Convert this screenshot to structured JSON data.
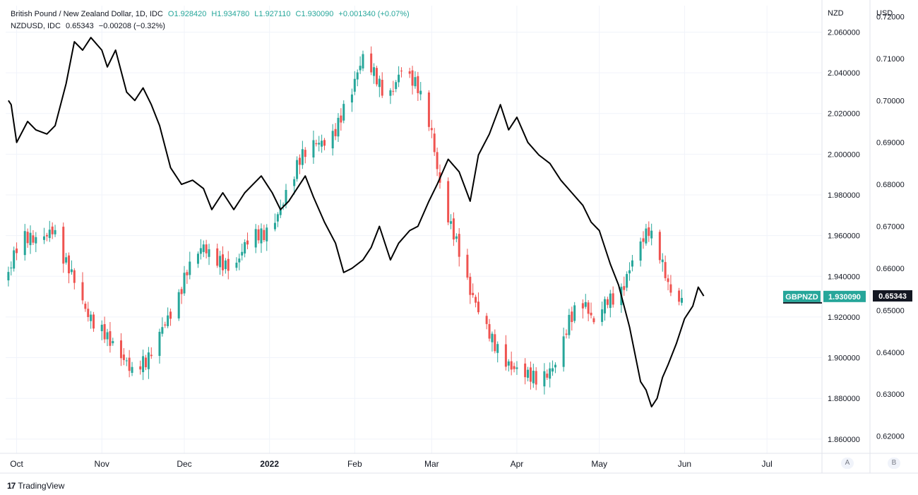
{
  "legend": {
    "series1_name": "British Pound / New Zealand Dollar, 1D, IDC",
    "series1_o": "O1.928420",
    "series1_h": "H1.934780",
    "series1_l": "L1.927110",
    "series1_c": "C1.930090",
    "series1_chg": "+0.001340 (+0.07%)",
    "series2_name": "NZDUSD, IDC",
    "series2_val": "0.65343",
    "series2_chg": "−0.00208 (−0.32%)"
  },
  "axes": {
    "left_unit": "NZD",
    "right_unit": "USD"
  },
  "branding": {
    "logo": "17",
    "text": "TradingView"
  },
  "pills": {
    "a": "A",
    "b": "B"
  },
  "colors": {
    "up": "#26a69a",
    "down": "#ef5350",
    "line": "#000000",
    "grid": "#f0f3fa",
    "badge_last": "#26a69a",
    "badge_line": "#131722"
  },
  "chart_data": {
    "type": "candlestick+line",
    "x_labels": [
      "Oct",
      "Nov",
      "Dec",
      "2022",
      "Feb",
      "Mar",
      "Apr",
      "May",
      "Jun",
      "Jul"
    ],
    "y_left": {
      "unit": "NZD",
      "ticks": [
        "2.060000",
        "2.040000",
        "2.020000",
        "2.000000",
        "1.980000",
        "1.960000",
        "1.940000",
        "1.920000",
        "1.900000",
        "1.880000",
        "1.860000"
      ],
      "range": [
        1.853,
        2.073
      ]
    },
    "y_right": {
      "unit": "USD",
      "ticks": [
        "0.72000",
        "0.71000",
        "0.70000",
        "0.69000",
        "0.68000",
        "0.67000",
        "0.66000",
        "0.65000",
        "0.64000",
        "0.63000",
        "0.62000"
      ],
      "range": [
        0.6159,
        0.7226
      ]
    },
    "last_label_gbpnzd": "GBPNZD",
    "last_value_gbpnzd": "1.930090",
    "last_value_nzdusd": "0.65343",
    "series": [
      {
        "name": "British Pound / New Zealand Dollar",
        "kind": "candles",
        "anchors": [
          [
            "2021-09-28",
            1.94
          ],
          [
            "2021-10-02",
            1.955
          ],
          [
            "2021-10-08",
            1.96
          ],
          [
            "2021-10-14",
            1.965
          ],
          [
            "2021-10-19",
            1.945
          ],
          [
            "2021-10-26",
            1.922
          ],
          [
            "2021-11-02",
            1.915
          ],
          [
            "2021-11-08",
            1.9
          ],
          [
            "2021-11-12",
            1.89
          ],
          [
            "2021-11-17",
            1.898
          ],
          [
            "2021-11-23",
            1.918
          ],
          [
            "2021-11-28",
            1.925
          ],
          [
            "2021-12-02",
            1.94
          ],
          [
            "2021-12-08",
            1.955
          ],
          [
            "2021-12-14",
            1.95
          ],
          [
            "2021-12-19",
            1.942
          ],
          [
            "2021-12-24",
            1.955
          ],
          [
            "2021-12-30",
            1.962
          ],
          [
            "2022-01-05",
            1.975
          ],
          [
            "2022-01-12",
            1.995
          ],
          [
            "2022-01-18",
            2.005
          ],
          [
            "2022-01-24",
            2.012
          ],
          [
            "2022-01-31",
            2.03
          ],
          [
            "2022-02-04",
            2.045
          ],
          [
            "2022-02-09",
            2.038
          ],
          [
            "2022-02-13",
            2.03
          ],
          [
            "2022-02-18",
            2.042
          ],
          [
            "2022-02-24",
            2.03
          ],
          [
            "2022-03-01",
            2.01
          ],
          [
            "2022-03-05",
            1.98
          ],
          [
            "2022-03-09",
            1.963
          ],
          [
            "2022-03-15",
            1.93
          ],
          [
            "2022-03-20",
            1.915
          ],
          [
            "2022-03-26",
            1.905
          ],
          [
            "2022-03-31",
            1.895
          ],
          [
            "2022-04-06",
            1.888
          ],
          [
            "2022-04-10",
            1.887
          ],
          [
            "2022-04-15",
            1.9
          ],
          [
            "2022-04-20",
            1.92
          ],
          [
            "2022-04-25",
            1.925
          ],
          [
            "2022-04-29",
            1.915
          ],
          [
            "2022-05-04",
            1.93
          ],
          [
            "2022-05-09",
            1.935
          ],
          [
            "2022-05-14",
            1.95
          ],
          [
            "2022-05-19",
            1.96
          ],
          [
            "2022-05-23",
            1.95
          ],
          [
            "2022-05-27",
            1.935
          ],
          [
            "2022-05-31",
            1.93
          ]
        ]
      },
      {
        "name": "NZDUSD",
        "kind": "line",
        "anchors": [
          [
            "2021-09-28",
            0.7
          ],
          [
            "2021-09-29",
            0.699
          ],
          [
            "2021-10-01",
            0.69
          ],
          [
            "2021-10-05",
            0.695
          ],
          [
            "2021-10-08",
            0.693
          ],
          [
            "2021-10-12",
            0.692
          ],
          [
            "2021-10-15",
            0.694
          ],
          [
            "2021-10-19",
            0.704
          ],
          [
            "2021-10-22",
            0.714
          ],
          [
            "2021-10-25",
            0.712
          ],
          [
            "2021-10-28",
            0.715
          ],
          [
            "2021-11-01",
            0.712
          ],
          [
            "2021-11-03",
            0.708
          ],
          [
            "2021-11-06",
            0.712
          ],
          [
            "2021-11-10",
            0.702
          ],
          [
            "2021-11-13",
            0.7
          ],
          [
            "2021-11-16",
            0.703
          ],
          [
            "2021-11-19",
            0.699
          ],
          [
            "2021-11-22",
            0.694
          ],
          [
            "2021-11-26",
            0.684
          ],
          [
            "2021-11-30",
            0.68
          ],
          [
            "2021-12-04",
            0.681
          ],
          [
            "2021-12-08",
            0.679
          ],
          [
            "2021-12-11",
            0.674
          ],
          [
            "2021-12-15",
            0.678
          ],
          [
            "2021-12-19",
            0.674
          ],
          [
            "2021-12-23",
            0.678
          ],
          [
            "2021-12-26",
            0.68
          ],
          [
            "2021-12-29",
            0.682
          ],
          [
            "2022-01-02",
            0.678
          ],
          [
            "2022-01-05",
            0.674
          ],
          [
            "2022-01-08",
            0.676
          ],
          [
            "2022-01-11",
            0.679
          ],
          [
            "2022-01-14",
            0.682
          ],
          [
            "2022-01-17",
            0.677
          ],
          [
            "2022-01-21",
            0.671
          ],
          [
            "2022-01-25",
            0.666
          ],
          [
            "2022-01-28",
            0.659
          ],
          [
            "2022-01-31",
            0.66
          ],
          [
            "2022-02-04",
            0.662
          ],
          [
            "2022-02-07",
            0.665
          ],
          [
            "2022-02-10",
            0.67
          ],
          [
            "2022-02-14",
            0.662
          ],
          [
            "2022-02-17",
            0.666
          ],
          [
            "2022-02-21",
            0.669
          ],
          [
            "2022-02-24",
            0.67
          ],
          [
            "2022-02-28",
            0.676
          ],
          [
            "2022-03-03",
            0.68
          ],
          [
            "2022-03-07",
            0.686
          ],
          [
            "2022-03-11",
            0.683
          ],
          [
            "2022-03-15",
            0.676
          ],
          [
            "2022-03-18",
            0.687
          ],
          [
            "2022-03-22",
            0.692
          ],
          [
            "2022-03-26",
            0.699
          ],
          [
            "2022-03-29",
            0.693
          ],
          [
            "2022-04-01",
            0.696
          ],
          [
            "2022-04-05",
            0.69
          ],
          [
            "2022-04-09",
            0.687
          ],
          [
            "2022-04-13",
            0.685
          ],
          [
            "2022-04-17",
            0.681
          ],
          [
            "2022-04-21",
            0.678
          ],
          [
            "2022-04-25",
            0.675
          ],
          [
            "2022-04-28",
            0.671
          ],
          [
            "2022-05-01",
            0.669
          ],
          [
            "2022-05-05",
            0.661
          ],
          [
            "2022-05-08",
            0.656
          ],
          [
            "2022-05-12",
            0.646
          ],
          [
            "2022-05-16",
            0.633
          ],
          [
            "2022-05-18",
            0.631
          ],
          [
            "2022-05-20",
            0.627
          ],
          [
            "2022-05-22",
            0.629
          ],
          [
            "2022-05-24",
            0.634
          ],
          [
            "2022-05-26",
            0.637
          ],
          [
            "2022-05-29",
            0.642
          ],
          [
            "2022-06-01",
            0.648
          ],
          [
            "2022-06-04",
            0.651
          ],
          [
            "2022-06-06",
            0.6555
          ],
          [
            "2022-06-08",
            0.6534
          ]
        ]
      }
    ]
  }
}
